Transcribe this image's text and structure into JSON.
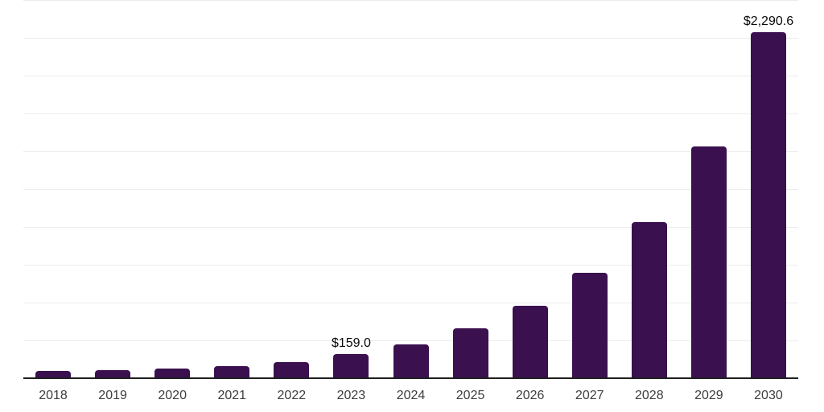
{
  "chart_data": {
    "type": "bar",
    "title": "",
    "xlabel": "",
    "ylabel": "",
    "categories": [
      "2018",
      "2019",
      "2020",
      "2021",
      "2022",
      "2023",
      "2024",
      "2025",
      "2026",
      "2027",
      "2028",
      "2029",
      "2030"
    ],
    "values": [
      46,
      52,
      63,
      80,
      106,
      159.0,
      222,
      329,
      479,
      698,
      1034,
      1535,
      2290.6
    ],
    "data_labels": [
      "",
      "",
      "",
      "",
      "",
      "$159.0",
      "",
      "",
      "",
      "",
      "",
      "",
      "$2,290.6"
    ],
    "currency_prefix": "$",
    "ylim": [
      0,
      2500
    ],
    "gridline_step": 250,
    "grid": true,
    "legend": "none",
    "y_axis_tick_labels_visible": false
  },
  "colors": {
    "bar": "#3A104F",
    "gridline": "#ECECEC",
    "axis": "#1F1F1F",
    "tick_label": "#3D3D3D",
    "data_label": "#0A0A0A",
    "background": "#FFFFFF"
  }
}
